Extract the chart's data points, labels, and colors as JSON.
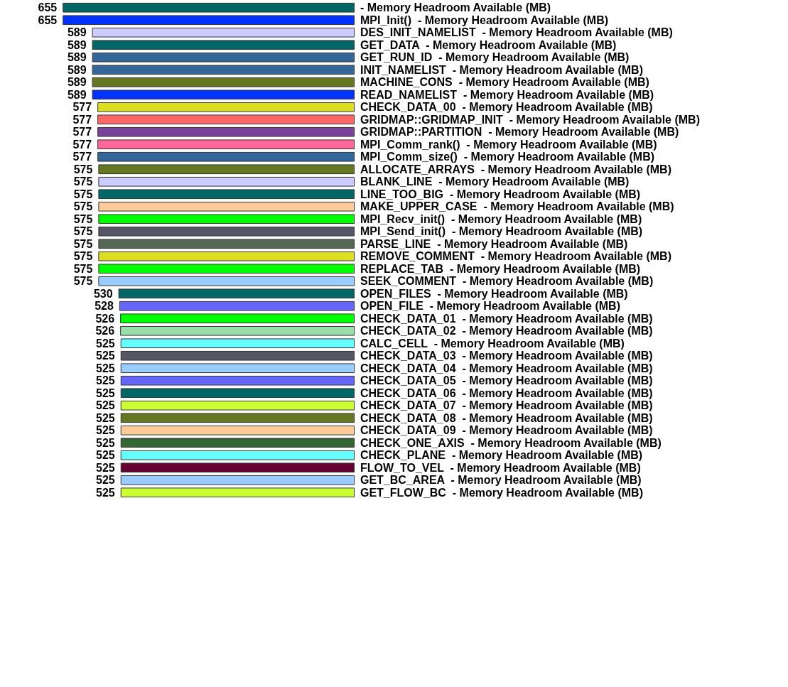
{
  "chart_data": {
    "type": "bar",
    "orientation": "horizontal",
    "data_labels": true,
    "categories": [
      "- Memory Headroom Available (MB)",
      "MPI_Init()  - Memory Headroom Available (MB)",
      "DES_INIT_NAMELIST  - Memory Headroom Available (MB)",
      "GET_DATA  - Memory Headroom Available (MB)",
      "GET_RUN_ID  - Memory Headroom Available (MB)",
      "INIT_NAMELIST  - Memory Headroom Available (MB)",
      "MACHINE_CONS  - Memory Headroom Available (MB)",
      "READ_NAMELIST  - Memory Headroom Available (MB)",
      "CHECK_DATA_00  - Memory Headroom Available (MB)",
      "GRIDMAP::GRIDMAP_INIT  - Memory Headroom Available (MB)",
      "GRIDMAP::PARTITION  - Memory Headroom Available (MB)",
      "MPI_Comm_rank()  - Memory Headroom Available (MB)",
      "MPI_Comm_size()  - Memory Headroom Available (MB)",
      "ALLOCATE_ARRAYS  - Memory Headroom Available (MB)",
      "BLANK_LINE  - Memory Headroom Available (MB)",
      "LINE_TOO_BIG  - Memory Headroom Available (MB)",
      "MAKE_UPPER_CASE  - Memory Headroom Available (MB)",
      "MPI_Recv_init()  - Memory Headroom Available (MB)",
      "MPI_Send_init()  - Memory Headroom Available (MB)",
      "PARSE_LINE  - Memory Headroom Available (MB)",
      "REMOVE_COMMENT  - Memory Headroom Available (MB)",
      "REPLACE_TAB  - Memory Headroom Available (MB)",
      "SEEK_COMMENT  - Memory Headroom Available (MB)",
      "OPEN_FILES  - Memory Headroom Available (MB)",
      "OPEN_FILE  - Memory Headroom Available (MB)",
      "CHECK_DATA_01  - Memory Headroom Available (MB)",
      "CHECK_DATA_02  - Memory Headroom Available (MB)",
      "CALC_CELL  - Memory Headroom Available (MB)",
      "CHECK_DATA_03  - Memory Headroom Available (MB)",
      "CHECK_DATA_04  - Memory Headroom Available (MB)",
      "CHECK_DATA_05  - Memory Headroom Available (MB)",
      "CHECK_DATA_06  - Memory Headroom Available (MB)",
      "CHECK_DATA_07  - Memory Headroom Available (MB)",
      "CHECK_DATA_08  - Memory Headroom Available (MB)",
      "CHECK_DATA_09  - Memory Headroom Available (MB)",
      "CHECK_ONE_AXIS  - Memory Headroom Available (MB)",
      "CHECK_PLANE  - Memory Headroom Available (MB)",
      "FLOW_TO_VEL  - Memory Headroom Available (MB)",
      "GET_BC_AREA  - Memory Headroom Available (MB)",
      "GET_FLOW_BC  - Memory Headroom Available (MB)"
    ],
    "values": [
      655,
      655,
      589,
      589,
      589,
      589,
      589,
      589,
      577,
      577,
      577,
      577,
      577,
      575,
      575,
      575,
      575,
      575,
      575,
      575,
      575,
      575,
      575,
      530,
      528,
      526,
      526,
      525,
      525,
      525,
      525,
      525,
      525,
      525,
      525,
      525,
      525,
      525,
      525,
      525
    ],
    "colors": [
      "#006666",
      "#0033ff",
      "#ccccff",
      "#006666",
      "#336699",
      "#336699",
      "#667722",
      "#0033ff",
      "#dddd22",
      "#ff6666",
      "#774499",
      "#ff6699",
      "#336699",
      "#667722",
      "#ccccff",
      "#006666",
      "#ffcc99",
      "#00ff00",
      "#555566",
      "#556655",
      "#dddd22",
      "#00ff00",
      "#99ccff",
      "#006666",
      "#6666ff",
      "#00ff00",
      "#99ddaa",
      "#66ffff",
      "#555566",
      "#99ccff",
      "#6666ff",
      "#006666",
      "#ccff33",
      "#667722",
      "#ffcc99",
      "#336633",
      "#66ffff",
      "#660033",
      "#99ccff",
      "#ccff33"
    ]
  }
}
